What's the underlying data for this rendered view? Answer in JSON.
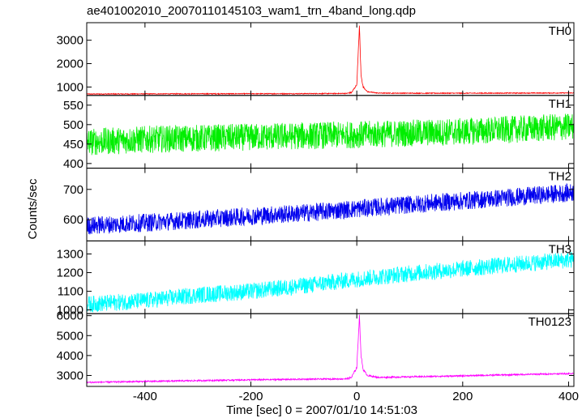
{
  "chart_data": {
    "type": "line",
    "title": "ae401002010_20070110145103_wam1_trn_4band_long.qdp",
    "xlabel": "Time [sec] 0 = 2007/01/10 14:51:03",
    "ylabel": "Counts/sec",
    "xlim": [
      -510,
      410
    ],
    "xticks": [
      -400,
      -200,
      0,
      200,
      400
    ],
    "grid": false,
    "panels": [
      {
        "name": "TH0",
        "color": "#ff0000",
        "ylim": [
          640,
          3750
        ],
        "yticks": [
          1000,
          2000,
          3000
        ],
        "x": [
          -510,
          -400,
          -300,
          -200,
          -100,
          -20,
          -10,
          0,
          5,
          8,
          12,
          20,
          40,
          100,
          200,
          300,
          410
        ],
        "values": [
          700,
          705,
          710,
          712,
          715,
          725,
          760,
          1100,
          3600,
          1500,
          1000,
          800,
          740,
          735,
          735,
          740,
          745
        ]
      },
      {
        "name": "TH1",
        "color": "#00ee00",
        "ylim": [
          388,
          575
        ],
        "yticks": [
          400,
          450,
          500,
          550
        ],
        "x": [
          -510,
          -400,
          -300,
          -200,
          -100,
          0,
          100,
          200,
          300,
          410
        ],
        "values": [
          455,
          462,
          465,
          468,
          471,
          474,
          478,
          482,
          488,
          495
        ]
      },
      {
        "name": "TH2",
        "color": "#0000ee",
        "ylim": [
          530,
          770
        ],
        "yticks": [
          600,
          700
        ],
        "x": [
          -510,
          -400,
          -300,
          -200,
          -100,
          0,
          100,
          200,
          300,
          410
        ],
        "values": [
          580,
          590,
          600,
          612,
          622,
          636,
          650,
          662,
          675,
          690
        ]
      },
      {
        "name": "TH3",
        "color": "#00ffff",
        "ylim": [
          980,
          1370
        ],
        "yticks": [
          1000,
          1100,
          1200,
          1300
        ],
        "x": [
          -510,
          -400,
          -300,
          -200,
          -100,
          0,
          100,
          200,
          300,
          410
        ],
        "values": [
          1030,
          1050,
          1080,
          1100,
          1130,
          1165,
          1195,
          1220,
          1245,
          1270
        ]
      },
      {
        "name": "TH0123",
        "color": "#ff00ff",
        "ylim": [
          2450,
          6100
        ],
        "yticks": [
          3000,
          4000,
          5000,
          6000
        ],
        "x": [
          -510,
          -400,
          -300,
          -200,
          -100,
          -20,
          -10,
          0,
          5,
          8,
          12,
          20,
          40,
          100,
          200,
          300,
          410
        ],
        "values": [
          2650,
          2700,
          2740,
          2780,
          2810,
          2830,
          2900,
          3400,
          6000,
          4000,
          3300,
          3000,
          2900,
          2930,
          2980,
          3040,
          3100
        ]
      }
    ]
  }
}
